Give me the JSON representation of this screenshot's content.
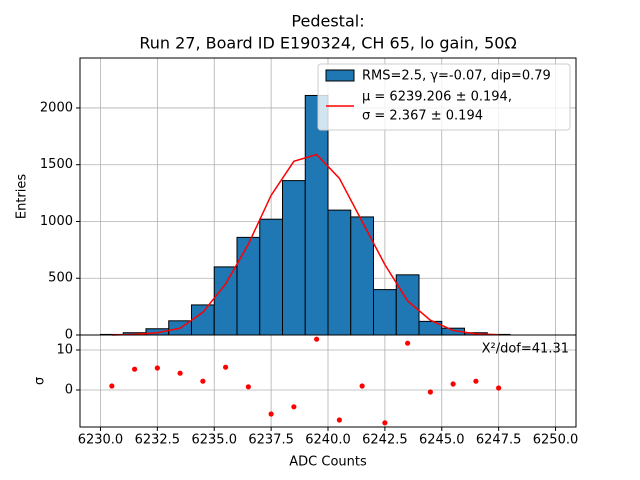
{
  "chart_data": [
    {
      "type": "histogram",
      "title": [
        "Pedestal:",
        "Run 27, Board ID E190324, CH 65, lo gain, 50Ω"
      ],
      "ylabel": "Entries",
      "name": "RMS=2.5, γ=-0.07, dip=0.79",
      "color": "#1f77b4",
      "bins": [
        6230,
        6231,
        6232,
        6233,
        6234,
        6235,
        6236,
        6237,
        6238,
        6239,
        6240,
        6241,
        6242,
        6243,
        6244,
        6245,
        6246,
        6247,
        6248
      ],
      "values": [
        5,
        20,
        55,
        125,
        265,
        600,
        860,
        1020,
        1360,
        2110,
        1100,
        1040,
        400,
        530,
        120,
        60,
        20,
        5
      ],
      "fit": {
        "name": [
          "μ = 6239.206 ± 0.194,",
          "σ = 2.367 ± 0.194"
        ],
        "color": "#ff0000",
        "x": [
          6230.5,
          6231.5,
          6232.5,
          6233.5,
          6234.5,
          6235.5,
          6236.5,
          6237.5,
          6238.5,
          6239.5,
          6240.5,
          6241.5,
          6242.5,
          6243.5,
          6244.5,
          6245.5,
          6246.5,
          6247.5
        ],
        "values": [
          0,
          5,
          20,
          60,
          200,
          450,
          800,
          1230,
          1530,
          1590,
          1380,
          1000,
          620,
          300,
          130,
          40,
          10,
          2
        ]
      },
      "xlim": [
        6229.1,
        6250.9
      ],
      "xticks": [
        6230,
        6232.5,
        6235,
        6237.5,
        6240,
        6242.5,
        6245,
        6247.5,
        6250
      ],
      "ylim": [
        0,
        2440
      ],
      "yticks": [
        0,
        500,
        1000,
        1500,
        2000
      ],
      "grid": true,
      "legend": "upper right"
    },
    {
      "type": "scatter",
      "xlabel": "ADC Counts",
      "ylabel": "σ",
      "annotation": "X²/dof=41.31",
      "color": "#ff0000",
      "x": [
        6230.5,
        6231.5,
        6232.5,
        6233.5,
        6234.5,
        6235.5,
        6236.5,
        6237.5,
        6238.5,
        6239.5,
        6240.5,
        6241.5,
        6242.5,
        6243.5,
        6244.5,
        6245.5,
        6246.5,
        6247.5
      ],
      "values": [
        1,
        5.2,
        5.5,
        4.2,
        2.2,
        5.7,
        0.8,
        -6,
        -4.2,
        12.7,
        -7.5,
        1,
        -8.2,
        11.7,
        -0.5,
        1.5,
        2.2,
        0.5
      ],
      "xlim": [
        6229.1,
        6250.9
      ],
      "xticks": [
        {
          "value": 6230,
          "label": "6230.0"
        },
        {
          "value": 6232.5,
          "label": "6232.5"
        },
        {
          "value": 6235,
          "label": "6235.0"
        },
        {
          "value": 6237.5,
          "label": "6237.5"
        },
        {
          "value": 6240,
          "label": "6240.0"
        },
        {
          "value": 6242.5,
          "label": "6242.5"
        },
        {
          "value": 6245,
          "label": "6245.0"
        },
        {
          "value": 6247.5,
          "label": "6247.5"
        },
        {
          "value": 6250,
          "label": "6250.0"
        }
      ],
      "ylim": [
        -9.25,
        13.75
      ],
      "yticks": [
        0,
        10
      ],
      "grid": true
    }
  ]
}
